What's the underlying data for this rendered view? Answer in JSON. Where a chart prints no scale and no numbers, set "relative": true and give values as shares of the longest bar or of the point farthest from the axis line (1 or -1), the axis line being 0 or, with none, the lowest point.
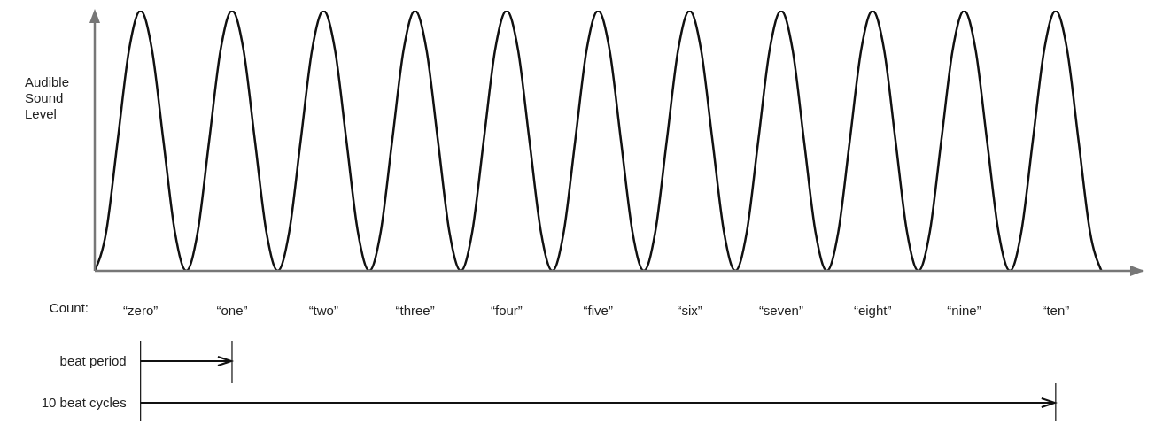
{
  "chart_data": {
    "type": "line",
    "relative": true,
    "ylabel": "Audible Sound Level",
    "xlabel": "Count:",
    "categories": [
      null,
      null,
      null,
      null,
      "“zero”",
      null,
      null,
      null,
      null,
      null,
      null,
      null,
      "“one”",
      null,
      null,
      null,
      null,
      null,
      null,
      null,
      "“two”",
      null,
      null,
      null,
      null,
      null,
      null,
      null,
      "“three”",
      null,
      null,
      null,
      null,
      null,
      null,
      null,
      "“four”",
      null,
      null,
      null,
      null,
      null,
      null,
      null,
      "“five”",
      null,
      null,
      null,
      null,
      null,
      null,
      null,
      "“six”",
      null,
      null,
      null,
      null,
      null,
      null,
      null,
      "“seven”",
      null,
      null,
      null,
      null,
      null,
      null,
      null,
      "“eight”",
      null,
      null,
      null,
      null,
      null,
      null,
      null,
      "“nine”",
      null,
      null,
      null,
      null,
      null,
      null,
      null,
      "“ten”",
      null,
      null,
      null,
      null
    ],
    "series": [
      {
        "color": "#111111",
        "values": [
          0,
          0.15,
          0.5,
          0.85,
          1,
          0.85,
          0.5,
          0.15,
          0,
          0.15,
          0.5,
          0.85,
          1,
          0.85,
          0.5,
          0.15,
          0,
          0.15,
          0.5,
          0.85,
          1,
          0.85,
          0.5,
          0.15,
          0,
          0.15,
          0.5,
          0.85,
          1,
          0.85,
          0.5,
          0.15,
          0,
          0.15,
          0.5,
          0.85,
          1,
          0.85,
          0.5,
          0.15,
          0,
          0.15,
          0.5,
          0.85,
          1,
          0.85,
          0.5,
          0.15,
          0,
          0.15,
          0.5,
          0.85,
          1,
          0.85,
          0.5,
          0.15,
          0,
          0.15,
          0.5,
          0.85,
          1,
          0.85,
          0.5,
          0.15,
          0,
          0.15,
          0.5,
          0.85,
          1,
          0.85,
          0.5,
          0.15,
          0,
          0.15,
          0.5,
          0.85,
          1,
          0.85,
          0.5,
          0.15,
          0,
          0.15,
          0.5,
          0.85,
          1,
          0.85,
          0.5,
          0.15,
          0
        ]
      }
    ],
    "marker": "none",
    "line_style": "solid",
    "annotations": [
      "beat period",
      "10 beat cycles"
    ]
  }
}
